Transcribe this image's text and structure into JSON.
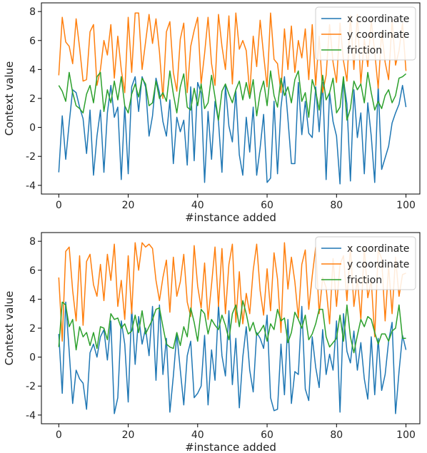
{
  "chart_data": [
    {
      "type": "line",
      "title": "",
      "xlabel": "#instance added",
      "ylabel": "Context value",
      "xlim": [
        -5,
        104
      ],
      "ylim": [
        -4.6,
        8.6
      ],
      "xticks": [
        0,
        20,
        40,
        60,
        80,
        100
      ],
      "yticks": [
        -4,
        -2,
        0,
        2,
        4,
        6,
        8
      ],
      "legend": "top-right",
      "x_start": 0,
      "x_step": 1,
      "series": [
        {
          "name": "x coordinate",
          "color": "#1f77b4",
          "values": [
            -3.1,
            0.8,
            -2.2,
            0.3,
            2.6,
            2.4,
            1.4,
            0.6,
            -1.8,
            1.2,
            -3.3,
            -0.6,
            1.2,
            -3.1,
            1.0,
            2.9,
            0.7,
            1.4,
            -3.6,
            1.5,
            -3.2,
            2.8,
            3.5,
            1.1,
            3.5,
            2.8,
            -0.6,
            0.8,
            3.4,
            2.4,
            0.4,
            -0.6,
            1.9,
            -2.5,
            0.7,
            -0.3,
            0.5,
            -2.6,
            2.8,
            -2.3,
            3.1,
            2.4,
            -3.8,
            1.1,
            -2.2,
            1.8,
            0.4,
            -3.1,
            2.9,
            0.1,
            -1.0,
            2.5,
            -1.9,
            -3.3,
            0.7,
            -1.7,
            1.4,
            -3.3,
            -1.4,
            0.9,
            -3.8,
            -3.5,
            1.8,
            -3.2,
            1.4,
            3.5,
            0.6,
            -2.5,
            -2.5,
            3.1,
            -0.5,
            1.8,
            -0.4,
            -0.7,
            2.8,
            -0.3,
            3.1,
            -3.6,
            2.4,
            0.4,
            -0.6,
            -3.9,
            3.3,
            1.6,
            -3.7,
            2.6,
            -0.7,
            1.0,
            -3.2,
            1.7,
            -0.6,
            -3.8,
            2.9,
            -2.9,
            -2.1,
            -1.3,
            0.3,
            1.0,
            1.6,
            2.9,
            1.4
          ]
        },
        {
          "name": "y coordinate",
          "color": "#ff7f0e",
          "values": [
            3.6,
            7.6,
            5.9,
            5.6,
            4.4,
            7.5,
            5.5,
            3.2,
            3.3,
            6.6,
            7.1,
            2.9,
            4.0,
            6.0,
            5.0,
            7.1,
            3.4,
            6.3,
            4.0,
            2.4,
            7.6,
            3.8,
            7.9,
            7.9,
            4.0,
            5.9,
            7.8,
            5.8,
            7.5,
            5.2,
            2.0,
            6.6,
            7.3,
            3.8,
            2.5,
            6.1,
            7.2,
            2.4,
            5.6,
            6.7,
            7.6,
            3.0,
            5.1,
            7.6,
            4.4,
            2.9,
            7.8,
            5.6,
            4.0,
            7.7,
            3.0,
            7.9,
            5.4,
            6.0,
            5.3,
            2.3,
            6.3,
            4.2,
            7.4,
            5.0,
            2.8,
            7.9,
            4.7,
            4.4,
            2.4,
            6.8,
            4.0,
            7.0,
            3.8,
            6.0,
            4.8,
            6.8,
            3.3,
            7.1,
            2.9,
            6.3,
            2.4,
            3.6,
            7.1,
            4.5,
            3.1,
            7.2,
            4.6,
            3.2,
            7.7,
            4.0,
            7.8,
            3.0,
            6.1,
            4.2,
            7.4,
            5.2,
            2.7,
            6.6,
            4.5,
            3.3,
            7.4,
            4.3,
            5.3,
            7.2,
            3.9
          ]
        },
        {
          "name": "friction",
          "color": "#2ca02c",
          "values": [
            2.9,
            2.5,
            1.8,
            3.8,
            2.4,
            1.5,
            1.3,
            1.0,
            2.3,
            2.9,
            1.7,
            3.5,
            3.8,
            1.1,
            2.6,
            1.7,
            3.2,
            1.9,
            3.5,
            1.5,
            1.0,
            2.3,
            3.0,
            2.1,
            3.4,
            3.0,
            1.5,
            1.7,
            3.2,
            2.0,
            2.4,
            1.8,
            3.9,
            2.3,
            1.0,
            2.8,
            3.7,
            1.4,
            1.2,
            2.7,
            1.5,
            3.0,
            1.3,
            1.7,
            3.6,
            2.1,
            0.5,
            2.5,
            3.0,
            2.3,
            1.7,
            2.6,
            3.2,
            1.9,
            3.1,
            2.0,
            3.3,
            0.8,
            2.4,
            3.2,
            1.5,
            3.9,
            2.2,
            1.4,
            3.4,
            2.2,
            2.8,
            1.7,
            3.3,
            3.9,
            1.8,
            2.4,
            0.7,
            3.3,
            2.5,
            1.2,
            3.6,
            1.9,
            2.4,
            3.4,
            1.0,
            1.4,
            3.5,
            0.5,
            1.3,
            3.2,
            2.6,
            3.0,
            1.7,
            3.8,
            2.4,
            1.2,
            1.8,
            1.3,
            2.2,
            2.6,
            1.7,
            2.2,
            3.4,
            3.5,
            3.7
          ]
        }
      ]
    },
    {
      "type": "line",
      "title": "",
      "xlabel": "#instance added",
      "ylabel": "Context value",
      "xlim": [
        -5,
        104
      ],
      "ylim": [
        -4.6,
        8.6
      ],
      "xticks": [
        0,
        20,
        40,
        60,
        80,
        100
      ],
      "yticks": [
        -4,
        -2,
        0,
        2,
        4,
        6,
        8
      ],
      "legend": "top-right",
      "x_start": 0,
      "x_step": 1,
      "series": [
        {
          "name": "x coordinate",
          "color": "#1f77b4",
          "values": [
            1.6,
            -2.5,
            3.8,
            0.4,
            -3.2,
            -0.9,
            -1.5,
            -1.8,
            -3.6,
            0.3,
            0.9,
            0.0,
            1.4,
            1.9,
            -0.2,
            2.5,
            -3.9,
            -2.8,
            2.5,
            0.9,
            -3.1,
            3.4,
            -0.5,
            2.8,
            0.9,
            2.0,
            0.1,
            3.5,
            -1.6,
            3.6,
            -1.2,
            1.3,
            -3.8,
            -1.3,
            1.6,
            -0.9,
            -3.3,
            0.1,
            1.1,
            -2.8,
            -2.5,
            -2.0,
            1.5,
            -3.3,
            0.5,
            -1.6,
            3.6,
            0.1,
            -1.3,
            3.2,
            -1.9,
            1.3,
            -3.5,
            0.0,
            2.1,
            -0.9,
            -2.4,
            1.7,
            1.3,
            0.6,
            2.9,
            -2.8,
            -3.7,
            -3.6,
            0.9,
            -2.6,
            2.6,
            -3.2,
            -1.0,
            -1.2,
            3.5,
            -2.2,
            -3.0,
            1.4,
            -0.7,
            -2.1,
            1.9,
            -1.2,
            0.2,
            -0.9,
            2.5,
            -3.8,
            3.0,
            0.4,
            -0.4,
            1.8,
            -0.9,
            1.0,
            -1.5,
            -2.9,
            1.4,
            -2.6,
            1.3,
            -2.3,
            -1.2,
            1.1,
            2.4,
            -3.9,
            -1.0,
            1.5,
            0.5
          ]
        },
        {
          "name": "y coordinate",
          "color": "#ff7f0e",
          "values": [
            5.5,
            1.1,
            7.3,
            7.6,
            4.6,
            2.5,
            7.0,
            2.2,
            6.6,
            7.1,
            5.0,
            4.2,
            6.4,
            3.9,
            7.1,
            5.3,
            7.8,
            3.5,
            5.3,
            2.6,
            7.0,
            3.0,
            7.9,
            6.0,
            7.9,
            7.6,
            7.8,
            7.5,
            5.3,
            3.9,
            5.5,
            6.7,
            3.1,
            6.9,
            4.2,
            5.2,
            7.1,
            3.8,
            2.8,
            7.7,
            4.9,
            3.4,
            6.5,
            2.6,
            5.0,
            7.6,
            3.5,
            7.5,
            3.0,
            6.4,
            7.8,
            2.4,
            5.9,
            2.3,
            4.4,
            3.0,
            6.0,
            7.8,
            4.6,
            2.9,
            6.1,
            3.2,
            7.2,
            5.4,
            1.7,
            7.9,
            4.7,
            6.9,
            5.2,
            2.7,
            6.4,
            7.4,
            3.3,
            5.6,
            7.6,
            3.0,
            5.5,
            4.8,
            2.3,
            6.8,
            3.5,
            6.4,
            7.0,
            3.9,
            7.6,
            3.5,
            5.4,
            2.6,
            7.6,
            4.1,
            5.3,
            1.4,
            7.4,
            6.8,
            2.5,
            6.3,
            3.0,
            6.9,
            4.2,
            5.7,
            5.8
          ]
        },
        {
          "name": "friction",
          "color": "#2ca02c",
          "values": [
            0.7,
            3.8,
            3.6,
            2.1,
            2.6,
            0.5,
            2.1,
            1.4,
            1.7,
            0.8,
            1.7,
            0.6,
            2.1,
            2.0,
            1.2,
            3.0,
            2.6,
            2.7,
            2.0,
            2.3,
            1.6,
            1.8,
            2.9,
            1.7,
            3.2,
            1.6,
            2.1,
            2.6,
            3.3,
            3.4,
            2.1,
            0.9,
            0.7,
            0.6,
            1.7,
            0.8,
            2.1,
            1.4,
            3.4,
            2.4,
            1.1,
            3.3,
            3.0,
            1.6,
            2.6,
            2.2,
            1.9,
            2.9,
            2.2,
            1.2,
            3.0,
            3.6,
            2.1,
            3.9,
            3.0,
            1.8,
            2.4,
            1.5,
            1.8,
            2.2,
            1.1,
            2.3,
            1.9,
            3.3,
            2.5,
            2.7,
            1.0,
            1.7,
            3.1,
            2.6,
            2.0,
            2.9,
            1.2,
            1.6,
            2.3,
            3.3,
            3.3,
            1.4,
            0.7,
            1.0,
            1.3,
            2.9,
            1.1,
            3.6,
            1.4,
            0.3,
            1.5,
            2.6,
            2.1,
            2.8,
            2.6,
            1.7,
            0.9,
            1.6,
            1.6,
            1.1,
            1.8,
            2.0,
            3.6,
            1.3,
            1.3
          ]
        }
      ]
    }
  ]
}
